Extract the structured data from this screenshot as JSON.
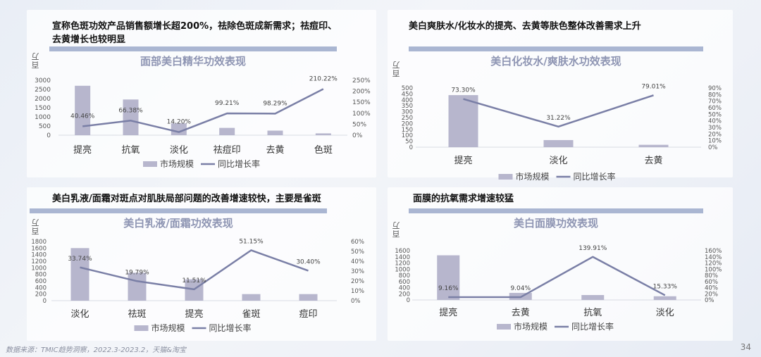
{
  "colors": {
    "bar": "#b7b6cd",
    "line": "#7a7fa6",
    "header_bar": "#aab6d2",
    "chart_title": "#8e95b3"
  },
  "legend": {
    "bar_label": "市场规模",
    "line_label": "同比增长率"
  },
  "unit_label": "百万",
  "footer": {
    "source": "数据来源：TMIC趋势洞察，2022.3-2023.2，天猫&淘宝",
    "page_number": "34"
  },
  "panels": [
    {
      "heading_line1": "宣称色斑功效产品销售额增长超200%，祛除色斑成新需求；祛痘印、",
      "heading_line2": "去黄增长也较明显",
      "chart_title": "面部美白精华功效表现"
    },
    {
      "heading_line1": "美白爽肤水/化妆水的提亮、去黄等肤色整体改善需求上升",
      "heading_line2": "",
      "chart_title": "美白化妆水/爽肤水功效表现"
    },
    {
      "heading_line1": "美白乳液/面霜对斑点对肌肤局部问题的改善增速较快，主要是雀斑",
      "heading_line2": "",
      "chart_title": "美白乳液/面霜功效表现"
    },
    {
      "heading_line1": "面膜的抗氧需求增速较猛",
      "heading_line2": "",
      "chart_title": "美白面膜功效表现"
    }
  ],
  "chart_data": [
    {
      "type": "bar",
      "title": "面部美白精华功效表现",
      "categories": [
        "提亮",
        "抗氧",
        "淡化",
        "祛痘印",
        "去黄",
        "色斑"
      ],
      "series": [
        {
          "name": "市场规模",
          "type": "bar",
          "axis": "left",
          "values": [
            2700,
            1950,
            650,
            400,
            250,
            100
          ]
        },
        {
          "name": "同比增长率",
          "type": "line",
          "axis": "right",
          "values": [
            40.46,
            66.38,
            14.2,
            99.21,
            98.29,
            210.22
          ],
          "labels": [
            "40.46%",
            "66.38%",
            "14.20%",
            "99.21%",
            "98.29%",
            "210.22%"
          ]
        }
      ],
      "ylabel": "百万",
      "ylim": [
        0,
        3000
      ],
      "yticks": [
        "0",
        "500",
        "1000",
        "1500",
        "2000",
        "2500",
        "3000"
      ],
      "y2lim": [
        0,
        250
      ],
      "y2ticks": [
        "0%",
        "50%",
        "100%",
        "150%",
        "200%",
        "250%"
      ],
      "legend_position": "bottom",
      "grid": false
    },
    {
      "type": "bar",
      "title": "美白化妆水/爽肤水功效表现",
      "categories": [
        "提亮",
        "淡化",
        "去黄"
      ],
      "series": [
        {
          "name": "市场规模",
          "type": "bar",
          "axis": "left",
          "values": [
            440,
            60,
            20
          ]
        },
        {
          "name": "同比增长率",
          "type": "line",
          "axis": "right",
          "values": [
            73.3,
            31.22,
            79.01
          ],
          "labels": [
            "73.30%",
            "31.22%",
            "79.01%"
          ]
        }
      ],
      "ylabel": "百万",
      "ylim": [
        0,
        500
      ],
      "yticks": [
        "0",
        "50",
        "100",
        "150",
        "200",
        "250",
        "300",
        "350",
        "400",
        "450",
        "500"
      ],
      "y2lim": [
        0,
        90
      ],
      "y2ticks": [
        "0%",
        "10%",
        "20%",
        "30%",
        "40%",
        "50%",
        "60%",
        "70%",
        "80%",
        "90%"
      ],
      "legend_position": "bottom",
      "grid": false
    },
    {
      "type": "bar",
      "title": "美白乳液/面霜功效表现",
      "categories": [
        "淡化",
        "祛斑",
        "提亮",
        "雀斑",
        "痘印"
      ],
      "series": [
        {
          "name": "市场规模",
          "type": "bar",
          "axis": "left",
          "values": [
            1600,
            850,
            650,
            200,
            200
          ]
        },
        {
          "name": "同比增长率",
          "type": "line",
          "axis": "right",
          "values": [
            33.74,
            19.79,
            11.51,
            51.15,
            30.4
          ],
          "labels": [
            "33.74%",
            "19.79%",
            "11.51%",
            "51.15%",
            "30.40%"
          ]
        }
      ],
      "ylabel": "百万",
      "ylim": [
        0,
        1800
      ],
      "yticks": [
        "0",
        "200",
        "400",
        "600",
        "800",
        "1000",
        "1200",
        "1400",
        "1600",
        "1800"
      ],
      "y2lim": [
        0,
        60
      ],
      "y2ticks": [
        "0%",
        "10%",
        "20%",
        "30%",
        "40%",
        "50%",
        "60%"
      ],
      "legend_position": "bottom",
      "grid": false
    },
    {
      "type": "bar",
      "title": "美白面膜功效表现",
      "categories": [
        "提亮",
        "去黄",
        "抗氧",
        "淡化"
      ],
      "series": [
        {
          "name": "市场规模",
          "type": "bar",
          "axis": "left",
          "values": [
            1450,
            230,
            160,
            120
          ]
        },
        {
          "name": "同比增长率",
          "type": "line",
          "axis": "right",
          "values": [
            9.16,
            9.04,
            139.91,
            15.33
          ],
          "labels": [
            "9.16%",
            "9.04%",
            "139.91%",
            "15.33%"
          ]
        }
      ],
      "ylabel": "百万",
      "ylim": [
        0,
        1600
      ],
      "yticks": [
        "0",
        "200",
        "400",
        "600",
        "800",
        "1000",
        "1200",
        "1400",
        "1600"
      ],
      "y2lim": [
        0,
        160
      ],
      "y2ticks": [
        "0%",
        "20%",
        "40%",
        "60%",
        "80%",
        "100%",
        "120%",
        "140%",
        "160%"
      ],
      "legend_position": "bottom",
      "grid": false
    }
  ]
}
